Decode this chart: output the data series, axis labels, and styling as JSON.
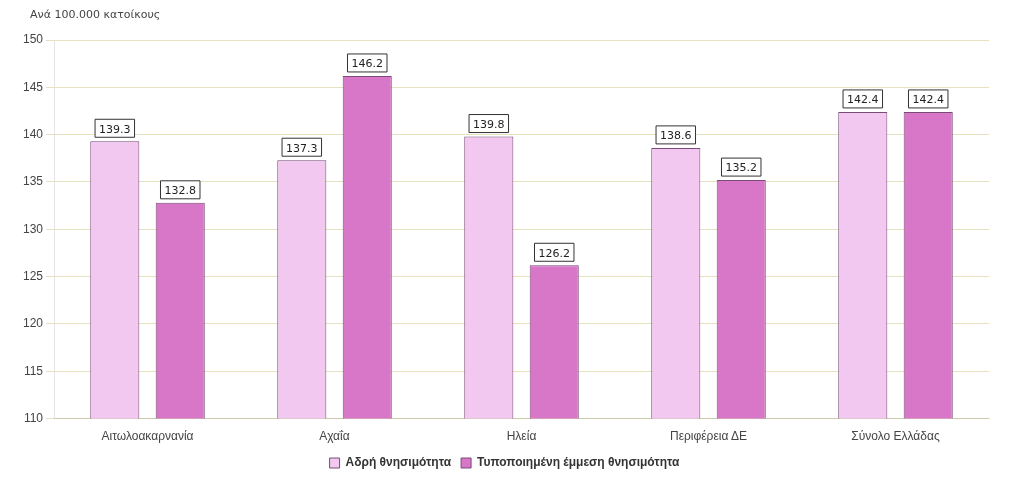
{
  "chart_data": {
    "type": "bar",
    "ylabel": "Ανά 100.000 κατοίκους",
    "categories": [
      "Αιτωλοακαρνανία",
      "Αχαΐα",
      "Ηλεία",
      "Περιφέρεια ΔΕ",
      "Σύνολο Ελλάδας"
    ],
    "series": [
      {
        "name": "Αδρή θνησιμότητα",
        "color": "#f2c8f0",
        "values": [
          139.3,
          137.3,
          139.8,
          138.6,
          142.4
        ]
      },
      {
        "name": "Τυποποιημένη έμμεση θνησιμότητα",
        "color": "#d877c8",
        "values": [
          132.8,
          146.2,
          126.2,
          135.2,
          142.4
        ]
      }
    ],
    "ylim": [
      110,
      150
    ],
    "yticks": [
      110,
      115,
      120,
      125,
      130,
      135,
      140,
      145,
      150
    ],
    "grid": "y",
    "legend": "bottom",
    "data_labels": true
  }
}
